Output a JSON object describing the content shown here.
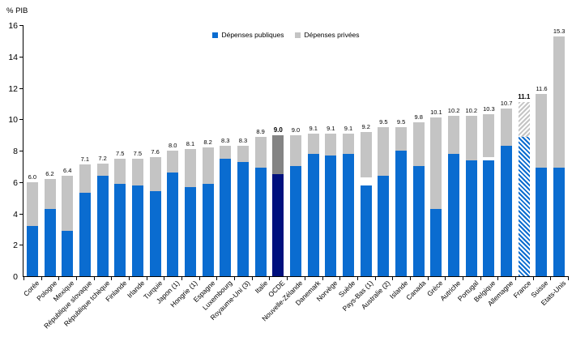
{
  "chart_data": {
    "type": "bar",
    "stacked": true,
    "title": "",
    "ylabel": "% PIB",
    "xlabel": "",
    "ylim": [
      0,
      16
    ],
    "yticks": [
      0,
      2,
      4,
      6,
      8,
      10,
      12,
      14,
      16
    ],
    "grid": false,
    "legend_position": "top-center",
    "series": [
      {
        "name": "Dépenses publiques",
        "color": "#0A6CD0"
      },
      {
        "name": "Dépenses privées",
        "color": "#C4C4C4"
      }
    ],
    "highlight_colors": {
      "ocde_public": "#00107D",
      "ocde_private": "#848484",
      "hatch_background": "#FFFFFF"
    },
    "bars": [
      {
        "label": "Corée",
        "total": 6.0,
        "public": 3.2,
        "private": 2.8
      },
      {
        "label": "Pologne",
        "total": 6.2,
        "public": 4.3,
        "private": 1.9
      },
      {
        "label": "Mexique",
        "total": 6.4,
        "public": 2.9,
        "private": 3.5
      },
      {
        "label": "République slovaque",
        "total": 7.1,
        "public": 5.3,
        "private": 1.8
      },
      {
        "label": "République tchèque",
        "total": 7.2,
        "public": 6.4,
        "private": 0.8
      },
      {
        "label": "Finlande",
        "total": 7.5,
        "public": 5.9,
        "private": 1.6
      },
      {
        "label": "Irlande",
        "total": 7.5,
        "public": 5.8,
        "private": 1.7
      },
      {
        "label": "Turquie",
        "total": 7.6,
        "public": 5.4,
        "private": 2.2
      },
      {
        "label": "Japon (1)",
        "total": 8.0,
        "public": 6.6,
        "private": 1.4
      },
      {
        "label": "Hongrie (1)",
        "total": 8.1,
        "public": 5.7,
        "private": 2.4
      },
      {
        "label": "Espagne",
        "total": 8.2,
        "public": 5.9,
        "private": 2.3
      },
      {
        "label": "Luxembourg",
        "total": 8.3,
        "public": 7.5,
        "private": 0.8
      },
      {
        "label": "Royaume-Uni (3)",
        "total": 8.3,
        "public": 7.3,
        "private": 1.0
      },
      {
        "label": "Italie",
        "total": 8.9,
        "public": 6.9,
        "private": 2.0
      },
      {
        "label": "OCDE",
        "total": 9.0,
        "public": 6.5,
        "private": 2.5,
        "style": "dark",
        "bold_value": true
      },
      {
        "label": "Nouvelle-Zélande",
        "total": 9.0,
        "public": 7.0,
        "private": 2.0
      },
      {
        "label": "Danemark",
        "total": 9.1,
        "public": 7.8,
        "private": 1.3
      },
      {
        "label": "Norvège",
        "total": 9.1,
        "public": 7.7,
        "private": 1.4
      },
      {
        "label": "Suède",
        "total": 9.1,
        "public": 7.8,
        "private": 1.3
      },
      {
        "label": "Pays-Bas (1)",
        "total": 9.2,
        "public": 5.8,
        "gap": 0.5,
        "private": 2.9
      },
      {
        "label": "Australie (2)",
        "total": 9.5,
        "public": 6.4,
        "private": 3.1
      },
      {
        "label": "Islande",
        "total": 9.5,
        "public": 8.0,
        "private": 1.5
      },
      {
        "label": "Canada",
        "total": 9.8,
        "public": 7.0,
        "private": 2.8
      },
      {
        "label": "Grèce",
        "total": 10.1,
        "public": 4.3,
        "private": 5.8
      },
      {
        "label": "Autriche",
        "total": 10.2,
        "public": 7.8,
        "private": 2.4
      },
      {
        "label": "Portugal",
        "total": 10.2,
        "public": 7.4,
        "private": 2.8
      },
      {
        "label": "Belgique",
        "total": 10.3,
        "public": 7.4,
        "gap": 0.2,
        "private": 2.7
      },
      {
        "label": "Allemagne",
        "total": 10.7,
        "public": 8.3,
        "private": 2.4
      },
      {
        "label": "France",
        "total": 11.1,
        "public": 8.9,
        "private": 2.2,
        "style": "hatched",
        "bold_value": true
      },
      {
        "label": "Suisse",
        "total": 11.6,
        "public": 6.9,
        "private": 4.7
      },
      {
        "label": "Etats-Unis",
        "total": 15.3,
        "public": 6.9,
        "private": 8.4
      }
    ]
  },
  "colors": {
    "axis": "#000000",
    "text": "#000000",
    "background": "#FFFFFF"
  }
}
